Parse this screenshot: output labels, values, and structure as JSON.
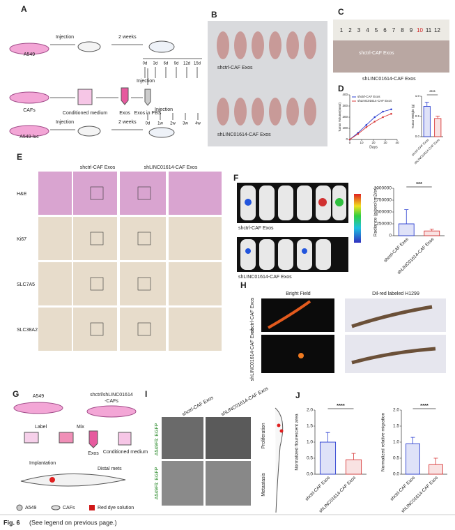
{
  "panel_a": {
    "label": "A",
    "a549": "A549",
    "injection_1": "Injection",
    "weeks_1": "2 weeks",
    "days": [
      "0d",
      "3d",
      "6d",
      "9d",
      "12d",
      "15d"
    ],
    "cafs": "CAFs",
    "conditioned_medium": "Conditioned medium",
    "exos": "Exos",
    "exos_in_pbs": "Exos in PBS",
    "injection_2": "Injection",
    "a549_luc": "A549-luc",
    "injection_3": "Injection",
    "weeks_2": "2 weeks",
    "injection_4": "Injection",
    "weeks": [
      "0d",
      "1w",
      "2w",
      "3w",
      "4w"
    ]
  },
  "panel_b": {
    "label": "B",
    "top": "shctrl-CAF Exos",
    "bottom": "shLINC01614-CAF Exos"
  },
  "panel_c": {
    "label": "C",
    "ruler": [
      "1",
      "2",
      "3",
      "4",
      "5",
      "6",
      "7",
      "8",
      "9",
      "10",
      "11",
      "12"
    ],
    "top": "shctrl-CAF Exos",
    "bottom": "shLINC01614-CAF Exos"
  },
  "panel_d": {
    "label": "D"
  },
  "panel_e": {
    "label": "E",
    "headers": [
      "shctrl-CAF Exos",
      "shLINC01614-CAF Exos"
    ],
    "rows": [
      "H&E",
      "Ki67",
      "SLC7A5",
      "SLC38A2"
    ]
  },
  "panel_f": {
    "label": "F",
    "top": "shctrl-CAF Exos",
    "bottom": "shLINC01614-CAF Exos"
  },
  "panel_h": {
    "label": "H",
    "col1": "Bright Field",
    "col2": "Dil-red labeled H1299",
    "rows": [
      "shctrl-CAF Exos",
      "shLINC01614-CAF Exos"
    ]
  },
  "panel_g": {
    "label": "G",
    "a549": "A549",
    "cafs_1": "shctrl/shLINC01614",
    "cafs_2": "-CAFs",
    "label_step": "Label",
    "mix": "Mix",
    "exos": "Exos",
    "conditioned_medium": "Conditioned medium",
    "implantation": "Implantation",
    "distal_mets": "Distal mets",
    "legend": [
      "A549",
      "CAFs",
      "Red dye solution"
    ]
  },
  "panel_i": {
    "label": "I",
    "headers": [
      "shctrl-CAF Exos",
      "shLINC01614-CAF Exos"
    ],
    "side": "A549Fli: EGFP",
    "right": [
      "Proliferation",
      "Metastasis"
    ]
  },
  "panel_j": {
    "label": "J"
  },
  "footer": {
    "fig": "Fig. 6",
    "note": "(See legend on previous page.)"
  },
  "chart_data": [
    {
      "type": "line",
      "x": [
        0,
        7,
        14,
        21,
        28,
        35
      ],
      "xlim": [
        0,
        40
      ],
      "xticks": [
        0,
        10,
        20,
        30,
        40
      ],
      "ylim": [
        0,
        400
      ],
      "yticks": [
        0,
        100,
        200,
        300,
        400
      ],
      "xlabel": "Days",
      "ylabel": "Tumor Volume(mm3)",
      "series": [
        {
          "name": "shctrl-CAF Exos",
          "color": "#2b3fd1",
          "values": [
            0,
            60,
            130,
            200,
            250,
            270
          ]
        },
        {
          "name": "shLINC01614-CAF Exos",
          "color": "#d83a3a",
          "values": [
            0,
            50,
            110,
            160,
            200,
            230
          ]
        }
      ]
    },
    {
      "type": "bar",
      "categories": [
        "shctrl-CAF Exos",
        "shLINC01614-CAF Exos"
      ],
      "values": [
        0.75,
        0.45
      ],
      "errors": [
        0.1,
        0.06
      ],
      "colors": [
        "#2b3fd1",
        "#d83a3a"
      ],
      "ylim": [
        0,
        1
      ],
      "yticks": [
        {
          "value": 0,
          "label": "0.0"
        },
        {
          "value": 0.5,
          "label": "0.5"
        },
        {
          "value": 1,
          "label": "1.0"
        }
      ],
      "ylabel": "Tumor Weight (g)",
      "significance": "****"
    },
    {
      "type": "bar",
      "categories": [
        "shctrl-CAF Exos",
        "shLINC01614-CAF Exos"
      ],
      "values": [
        250000,
        100000
      ],
      "errors": [
        300000,
        40000
      ],
      "colors": [
        "#2b3fd1",
        "#d83a3a"
      ],
      "ylim": [
        0,
        1000000
      ],
      "yticks": [
        0,
        250000,
        500000,
        750000,
        1000000
      ],
      "ylabel": "Radiance (p/sec/cm2/sr)",
      "significance": "***"
    },
    {
      "type": "bar",
      "categories": [
        "shctrl-CAF Exos",
        "shLINC01614-CAF Exos"
      ],
      "values": [
        1.0,
        0.45
      ],
      "errors": [
        0.3,
        0.2
      ],
      "colors": [
        "#2b3fd1",
        "#d83a3a"
      ],
      "ylim": [
        0,
        2
      ],
      "yticks": [
        {
          "value": 0,
          "label": "0.0"
        },
        {
          "value": 0.5,
          "label": "0.5"
        },
        {
          "value": 1,
          "label": "1.0"
        },
        {
          "value": 1.5,
          "label": "1.5"
        },
        {
          "value": 2,
          "label": "2.0"
        }
      ],
      "ylabel": "Normalized flourescent area",
      "significance": "****"
    },
    {
      "type": "bar",
      "categories": [
        "shctrl-CAF Exos",
        "shLINC01614-CAF Exos"
      ],
      "values": [
        0.95,
        0.3
      ],
      "errors": [
        0.2,
        0.2
      ],
      "colors": [
        "#2b3fd1",
        "#d83a3a"
      ],
      "ylim": [
        0,
        2
      ],
      "yticks": [
        {
          "value": 0,
          "label": "0.0"
        },
        {
          "value": 0.5,
          "label": "0.5"
        },
        {
          "value": 1,
          "label": "1.0"
        },
        {
          "value": 1.5,
          "label": "1.5"
        },
        {
          "value": 2,
          "label": "2.0"
        }
      ],
      "ylabel": "Normalized relative migration",
      "significance": "****"
    }
  ]
}
